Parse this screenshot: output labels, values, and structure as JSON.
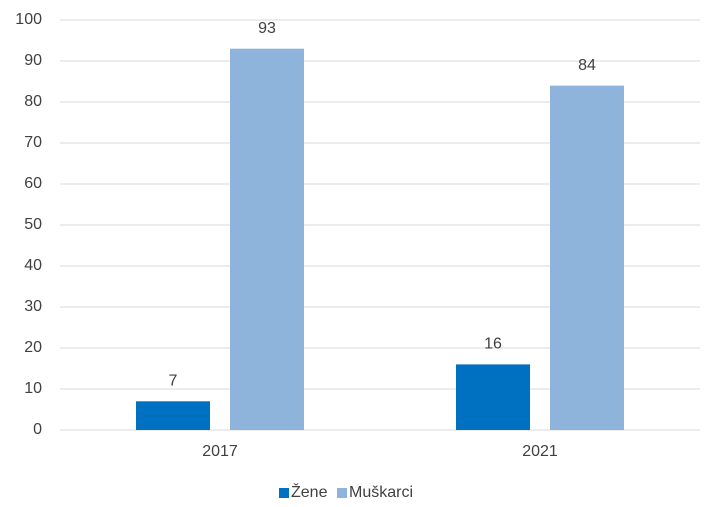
{
  "chart_data": {
    "type": "bar",
    "categories": [
      "2017",
      "2021"
    ],
    "series": [
      {
        "name": "Žene",
        "color": "#0070c0",
        "values": [
          7,
          16
        ]
      },
      {
        "name": "Muškarci",
        "color": "#8fb4dc",
        "values": [
          93,
          84
        ]
      }
    ],
    "ylim": [
      0,
      100
    ],
    "yticks": [
      0,
      10,
      20,
      30,
      40,
      50,
      60,
      70,
      80,
      90,
      100
    ],
    "grid": true,
    "legend": "bottom"
  }
}
